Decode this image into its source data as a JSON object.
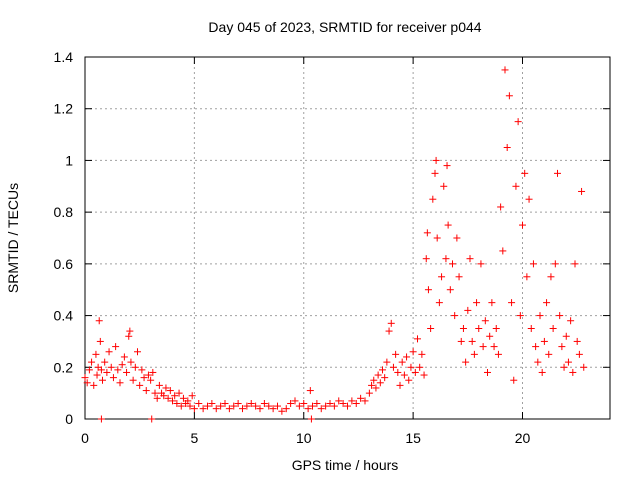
{
  "chart_data": {
    "type": "scatter",
    "title": "Day 045 of 2023, SRMTID for receiver p044",
    "xlabel": "GPS time / hours",
    "ylabel": "SRMTID / TECUs",
    "xlim": [
      0,
      24
    ],
    "ylim": [
      0,
      1.4
    ],
    "xticks": [
      0,
      5,
      10,
      15,
      20
    ],
    "xtick_labels": [
      "0",
      "5",
      "10",
      "15",
      "20"
    ],
    "yticks": [
      0,
      0.2,
      0.4,
      0.6,
      0.8,
      1.0,
      1.2,
      1.4
    ],
    "ytick_labels": [
      "0",
      "0.2",
      "0.4",
      "0.6",
      "0.8",
      "1",
      "1.2",
      "1.4"
    ],
    "grid": true,
    "marker": "+",
    "colors": {
      "series": "#ff0000",
      "axis": "#000000",
      "grid": "#a0a0a0"
    },
    "series": [
      {
        "name": "p044",
        "points": [
          [
            0.0,
            0.16
          ],
          [
            0.1,
            0.14
          ],
          [
            0.2,
            0.19
          ],
          [
            0.3,
            0.22
          ],
          [
            0.4,
            0.13
          ],
          [
            0.5,
            0.25
          ],
          [
            0.55,
            0.17
          ],
          [
            0.6,
            0.2
          ],
          [
            0.65,
            0.38
          ],
          [
            0.7,
            0.3
          ],
          [
            0.75,
            0.19
          ],
          [
            0.8,
            0.15
          ],
          [
            0.9,
            0.22
          ],
          [
            1.0,
            0.18
          ],
          [
            1.1,
            0.26
          ],
          [
            1.2,
            0.2
          ],
          [
            1.3,
            0.16
          ],
          [
            1.4,
            0.28
          ],
          [
            1.5,
            0.19
          ],
          [
            1.6,
            0.14
          ],
          [
            1.7,
            0.21
          ],
          [
            1.8,
            0.24
          ],
          [
            1.9,
            0.18
          ],
          [
            2.0,
            0.32
          ],
          [
            2.05,
            0.34
          ],
          [
            2.1,
            0.22
          ],
          [
            2.2,
            0.15
          ],
          [
            2.3,
            0.2
          ],
          [
            2.4,
            0.26
          ],
          [
            2.5,
            0.13
          ],
          [
            2.6,
            0.19
          ],
          [
            2.7,
            0.16
          ],
          [
            2.8,
            0.11
          ],
          [
            2.9,
            0.17
          ],
          [
            3.0,
            0.15
          ],
          [
            3.1,
            0.18
          ],
          [
            3.2,
            0.1
          ],
          [
            3.3,
            0.08
          ],
          [
            3.4,
            0.13
          ],
          [
            3.5,
            0.1
          ],
          [
            3.6,
            0.09
          ],
          [
            3.7,
            0.12
          ],
          [
            3.8,
            0.08
          ],
          [
            3.9,
            0.11
          ],
          [
            4.0,
            0.07
          ],
          [
            4.1,
            0.09
          ],
          [
            4.2,
            0.06
          ],
          [
            4.3,
            0.1
          ],
          [
            4.4,
            0.05
          ],
          [
            4.5,
            0.08
          ],
          [
            4.6,
            0.06
          ],
          [
            4.7,
            0.07
          ],
          [
            4.8,
            0.05
          ],
          [
            4.9,
            0.09
          ],
          [
            5.0,
            0.04
          ],
          [
            5.2,
            0.06
          ],
          [
            5.4,
            0.04
          ],
          [
            5.6,
            0.05
          ],
          [
            5.8,
            0.06
          ],
          [
            6.0,
            0.04
          ],
          [
            6.2,
            0.05
          ],
          [
            6.4,
            0.06
          ],
          [
            6.6,
            0.04
          ],
          [
            6.8,
            0.05
          ],
          [
            7.0,
            0.06
          ],
          [
            7.2,
            0.04
          ],
          [
            7.4,
            0.05
          ],
          [
            7.6,
            0.06
          ],
          [
            7.8,
            0.05
          ],
          [
            8.0,
            0.04
          ],
          [
            8.2,
            0.06
          ],
          [
            8.4,
            0.05
          ],
          [
            8.6,
            0.04
          ],
          [
            8.8,
            0.05
          ],
          [
            9.0,
            0.03
          ],
          [
            9.2,
            0.04
          ],
          [
            9.4,
            0.06
          ],
          [
            9.6,
            0.07
          ],
          [
            9.8,
            0.05
          ],
          [
            10.0,
            0.06
          ],
          [
            10.2,
            0.04
          ],
          [
            10.3,
            0.11
          ],
          [
            10.4,
            0.05
          ],
          [
            10.6,
            0.06
          ],
          [
            10.8,
            0.04
          ],
          [
            11.0,
            0.05
          ],
          [
            11.2,
            0.06
          ],
          [
            11.4,
            0.05
          ],
          [
            11.6,
            0.07
          ],
          [
            11.8,
            0.06
          ],
          [
            12.0,
            0.05
          ],
          [
            12.2,
            0.07
          ],
          [
            12.4,
            0.06
          ],
          [
            12.6,
            0.08
          ],
          [
            12.8,
            0.07
          ],
          [
            13.0,
            0.1
          ],
          [
            13.1,
            0.13
          ],
          [
            13.2,
            0.15
          ],
          [
            13.3,
            0.12
          ],
          [
            13.4,
            0.17
          ],
          [
            13.5,
            0.14
          ],
          [
            13.6,
            0.19
          ],
          [
            13.7,
            0.16
          ],
          [
            13.8,
            0.22
          ],
          [
            13.9,
            0.34
          ],
          [
            14.0,
            0.37
          ],
          [
            14.1,
            0.2
          ],
          [
            14.2,
            0.25
          ],
          [
            14.3,
            0.18
          ],
          [
            14.4,
            0.13
          ],
          [
            14.5,
            0.22
          ],
          [
            14.6,
            0.17
          ],
          [
            14.7,
            0.24
          ],
          [
            14.8,
            0.15
          ],
          [
            14.9,
            0.2
          ],
          [
            15.0,
            0.26
          ],
          [
            15.1,
            0.18
          ],
          [
            15.2,
            0.31
          ],
          [
            15.3,
            0.2
          ],
          [
            15.4,
            0.25
          ],
          [
            15.5,
            0.17
          ],
          [
            15.6,
            0.62
          ],
          [
            15.65,
            0.72
          ],
          [
            15.7,
            0.5
          ],
          [
            15.8,
            0.35
          ],
          [
            15.9,
            0.85
          ],
          [
            16.0,
            0.95
          ],
          [
            16.05,
            1.0
          ],
          [
            16.1,
            0.7
          ],
          [
            16.2,
            0.45
          ],
          [
            16.3,
            0.55
          ],
          [
            16.4,
            0.9
          ],
          [
            16.5,
            0.62
          ],
          [
            16.55,
            0.98
          ],
          [
            16.6,
            0.75
          ],
          [
            16.7,
            0.5
          ],
          [
            16.8,
            0.6
          ],
          [
            16.9,
            0.4
          ],
          [
            17.0,
            0.7
          ],
          [
            17.1,
            0.55
          ],
          [
            17.2,
            0.3
          ],
          [
            17.3,
            0.35
          ],
          [
            17.4,
            0.22
          ],
          [
            17.5,
            0.42
          ],
          [
            17.6,
            0.62
          ],
          [
            17.7,
            0.3
          ],
          [
            17.8,
            0.25
          ],
          [
            17.9,
            0.45
          ],
          [
            18.0,
            0.35
          ],
          [
            18.1,
            0.6
          ],
          [
            18.2,
            0.28
          ],
          [
            18.3,
            0.38
          ],
          [
            18.4,
            0.18
          ],
          [
            18.5,
            0.32
          ],
          [
            18.6,
            0.45
          ],
          [
            18.7,
            0.28
          ],
          [
            18.8,
            0.35
          ],
          [
            18.9,
            0.25
          ],
          [
            19.0,
            0.82
          ],
          [
            19.1,
            0.65
          ],
          [
            19.2,
            1.35
          ],
          [
            19.3,
            1.05
          ],
          [
            19.4,
            1.25
          ],
          [
            19.5,
            0.45
          ],
          [
            19.6,
            0.15
          ],
          [
            19.7,
            0.9
          ],
          [
            19.8,
            1.15
          ],
          [
            19.9,
            0.4
          ],
          [
            20.0,
            0.75
          ],
          [
            20.1,
            0.95
          ],
          [
            20.2,
            0.55
          ],
          [
            20.3,
            0.85
          ],
          [
            20.4,
            0.35
          ],
          [
            20.5,
            0.6
          ],
          [
            20.6,
            0.28
          ],
          [
            20.7,
            0.22
          ],
          [
            20.8,
            0.4
          ],
          [
            20.9,
            0.18
          ],
          [
            21.0,
            0.3
          ],
          [
            21.1,
            0.45
          ],
          [
            21.2,
            0.25
          ],
          [
            21.3,
            0.55
          ],
          [
            21.4,
            0.35
          ],
          [
            21.5,
            0.6
          ],
          [
            21.6,
            0.95
          ],
          [
            21.7,
            0.4
          ],
          [
            21.8,
            0.28
          ],
          [
            21.9,
            0.2
          ],
          [
            22.0,
            0.32
          ],
          [
            22.1,
            0.22
          ],
          [
            22.2,
            0.38
          ],
          [
            22.3,
            0.18
          ],
          [
            22.4,
            0.6
          ],
          [
            22.5,
            0.3
          ],
          [
            22.6,
            0.25
          ],
          [
            22.7,
            0.88
          ],
          [
            22.8,
            0.2
          ]
        ]
      }
    ],
    "outliers": [
      [
        0.75,
        0.0
      ],
      [
        3.05,
        0.0
      ],
      [
        10.35,
        0.0
      ]
    ]
  }
}
